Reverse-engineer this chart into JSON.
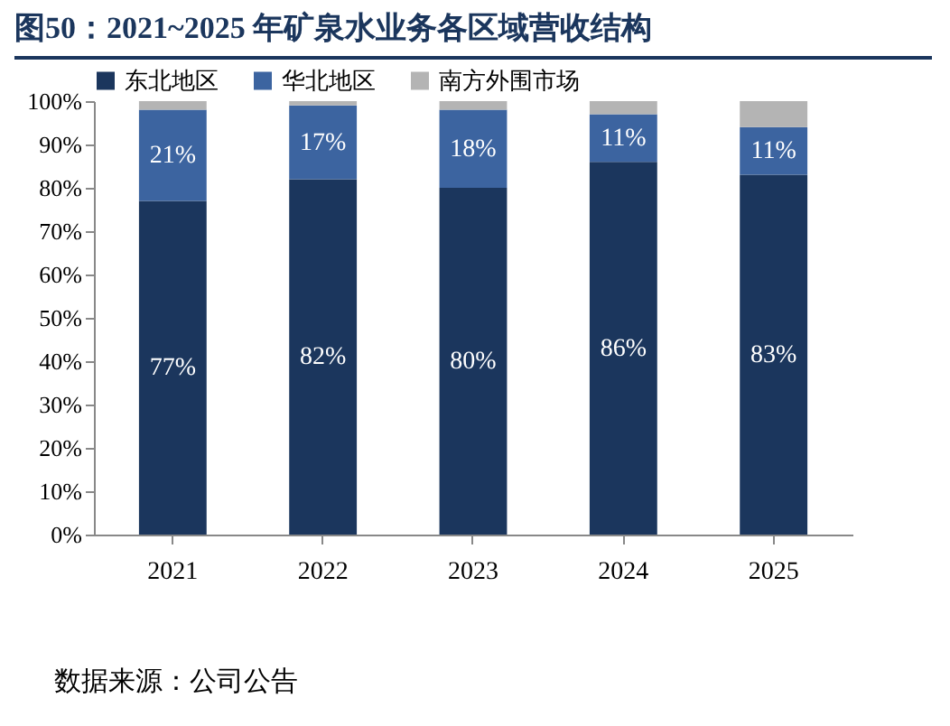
{
  "chart_data": {
    "type": "bar",
    "stacked": true,
    "title": "图50：2021~2025 年矿泉水业务各区域营收结构",
    "categories": [
      "2021",
      "2022",
      "2023",
      "2024",
      "2025"
    ],
    "series": [
      {
        "name": "东北地区",
        "color": "#1b365d",
        "values": [
          77,
          82,
          80,
          86,
          83
        ],
        "value_labels": [
          "77%",
          "82%",
          "80%",
          "86%",
          "83%"
        ]
      },
      {
        "name": "华北地区",
        "color": "#3c64a0",
        "values": [
          21,
          17,
          18,
          11,
          11
        ],
        "value_labels": [
          "21%",
          "17%",
          "18%",
          "11%",
          "11%"
        ]
      },
      {
        "name": "南方外围市场",
        "color": "#b4b4b4",
        "values": [
          2,
          1,
          2,
          3,
          6
        ]
      }
    ],
    "ylim": [
      0,
      100
    ],
    "yticks": [
      {
        "value": 0,
        "label": "0%"
      },
      {
        "value": 10,
        "label": "10%"
      },
      {
        "value": 20,
        "label": "20%"
      },
      {
        "value": 30,
        "label": "30%"
      },
      {
        "value": 40,
        "label": "40%"
      },
      {
        "value": 50,
        "label": "50%"
      },
      {
        "value": 60,
        "label": "60%"
      },
      {
        "value": 70,
        "label": "70%"
      },
      {
        "value": 80,
        "label": "80%"
      },
      {
        "value": 90,
        "label": "90%"
      },
      {
        "value": 100,
        "label": "100%"
      }
    ],
    "legend": "top",
    "grid": false,
    "annotations": [
      "数据来源：公司公告"
    ]
  }
}
